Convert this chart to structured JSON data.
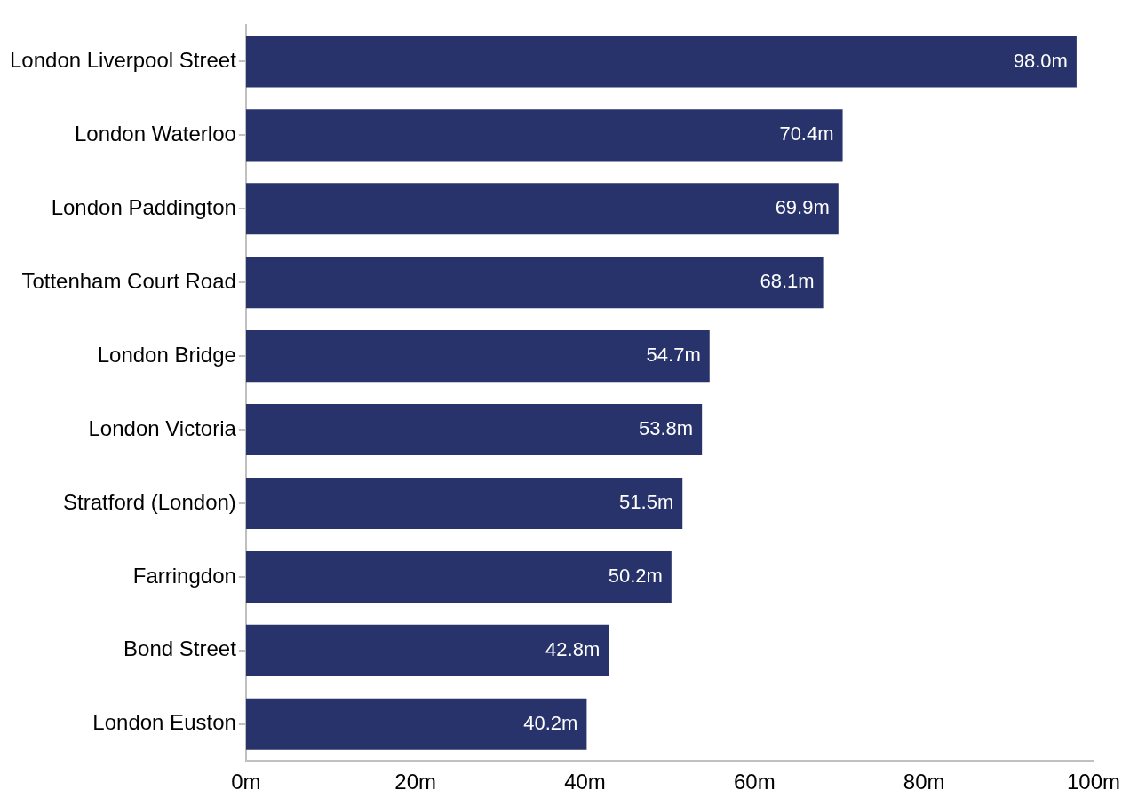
{
  "chart_data": {
    "type": "bar",
    "orientation": "horizontal",
    "categories": [
      "London Liverpool Street",
      "London Waterloo",
      "London Paddington",
      "Tottenham Court Road",
      "London Bridge",
      "London Victoria",
      "Stratford (London)",
      "Farringdon",
      "Bond Street",
      "London Euston"
    ],
    "values": [
      98.0,
      70.4,
      69.9,
      68.1,
      54.7,
      53.8,
      51.5,
      50.2,
      42.8,
      40.2
    ],
    "value_labels": [
      "98.0m",
      "70.4m",
      "69.9m",
      "68.1m",
      "54.7m",
      "53.8m",
      "51.5m",
      "50.2m",
      "42.8m",
      "40.2m"
    ],
    "color": "#27336a",
    "xlim": [
      0,
      100
    ],
    "xticks": [
      {
        "value": 0,
        "label": "0m"
      },
      {
        "value": 20,
        "label": "20m"
      },
      {
        "value": 40,
        "label": "40m"
      },
      {
        "value": 60,
        "label": "60m"
      },
      {
        "value": 80,
        "label": "80m"
      },
      {
        "value": 100,
        "label": "100m"
      }
    ],
    "grid": false,
    "legend": false
  }
}
